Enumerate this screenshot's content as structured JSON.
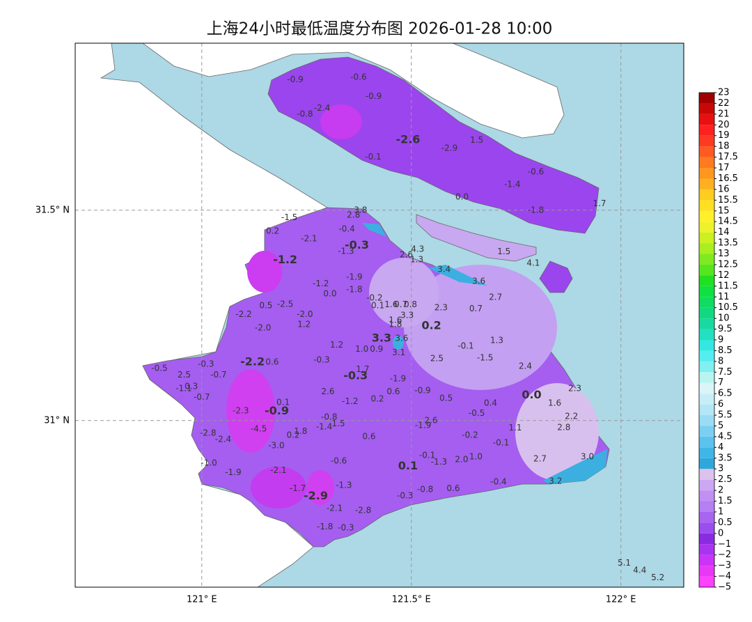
{
  "title": "上海24小时最低温度分布图 2026-01-28 10:00",
  "map": {
    "xlim": [
      120.698,
      122.15
    ],
    "ylim": [
      30.604,
      31.897
    ],
    "xticks": [
      {
        "value": 121,
        "label": "121° E"
      },
      {
        "value": 121.5,
        "label": "121.5° E"
      },
      {
        "value": 122,
        "label": "122° E"
      }
    ],
    "yticks": [
      {
        "value": 31.5,
        "label": "31.5° N"
      },
      {
        "value": 31,
        "label": "31° N"
      }
    ],
    "grid": true,
    "stations": [
      {
        "lon": 121.223,
        "lat": 31.81,
        "value": -0.9
      },
      {
        "lon": 121.374,
        "lat": 31.816,
        "value": -0.6
      },
      {
        "lon": 121.41,
        "lat": 31.77,
        "value": -0.9
      },
      {
        "lon": 121.287,
        "lat": 31.742,
        "value": -2.4
      },
      {
        "lon": 121.246,
        "lat": 31.728,
        "value": -0.8
      },
      {
        "lon": 121.492,
        "lat": 31.667,
        "value": -2.6,
        "bold": true
      },
      {
        "lon": 121.591,
        "lat": 31.647,
        "value": -2.9
      },
      {
        "lon": 121.656,
        "lat": 31.666,
        "value": 1.5
      },
      {
        "lon": 121.409,
        "lat": 31.626,
        "value": -0.1
      },
      {
        "lon": 121.797,
        "lat": 31.591,
        "value": -0.6
      },
      {
        "lon": 121.741,
        "lat": 31.561,
        "value": -1.4
      },
      {
        "lon": 121.621,
        "lat": 31.531,
        "value": 0,
        "label": "0.0"
      },
      {
        "lon": 121.797,
        "lat": 31.5,
        "value": -1.8
      },
      {
        "lon": 121.949,
        "lat": 31.515,
        "value": 1.7
      },
      {
        "lon": 121.379,
        "lat": 31.5,
        "value": 3.8
      },
      {
        "lon": 121.362,
        "lat": 31.488,
        "value": 2.8
      },
      {
        "lon": 121.209,
        "lat": 31.482,
        "value": -1.5
      },
      {
        "lon": 121.169,
        "lat": 31.45,
        "value": 0.2
      },
      {
        "lon": 121.346,
        "lat": 31.455,
        "value": -0.4
      },
      {
        "lon": 121.256,
        "lat": 31.432,
        "value": -2.1
      },
      {
        "lon": 121.37,
        "lat": 31.416,
        "value": -0.3,
        "bold": true
      },
      {
        "lon": 121.344,
        "lat": 31.402,
        "value": -1.3
      },
      {
        "lon": 121.515,
        "lat": 31.407,
        "value": 4.3
      },
      {
        "lon": 121.488,
        "lat": 31.394,
        "value": 2.6
      },
      {
        "lon": 121.513,
        "lat": 31.382,
        "value": 1.3
      },
      {
        "lon": 121.199,
        "lat": 31.381,
        "value": -1.2,
        "bold": true
      },
      {
        "lon": 121.578,
        "lat": 31.359,
        "value": 3.4
      },
      {
        "lon": 121.721,
        "lat": 31.401,
        "value": 1.5
      },
      {
        "lon": 121.791,
        "lat": 31.374,
        "value": 4.1
      },
      {
        "lon": 121.364,
        "lat": 31.341,
        "value": -1.9
      },
      {
        "lon": 121.661,
        "lat": 31.331,
        "value": 3.6
      },
      {
        "lon": 121.284,
        "lat": 31.325,
        "value": -1.2
      },
      {
        "lon": 121.364,
        "lat": 31.311,
        "value": -1.8
      },
      {
        "lon": 121.306,
        "lat": 31.301,
        "value": 0,
        "label": "0.0"
      },
      {
        "lon": 121.412,
        "lat": 31.291,
        "value": -0.2
      },
      {
        "lon": 121.701,
        "lat": 31.293,
        "value": 2.7
      },
      {
        "lon": 121.42,
        "lat": 31.273,
        "value": 0.1
      },
      {
        "lon": 121.452,
        "lat": 31.275,
        "value": 1.6
      },
      {
        "lon": 121.475,
        "lat": 31.275,
        "value": 0.7
      },
      {
        "lon": 121.498,
        "lat": 31.275,
        "value": 0.8
      },
      {
        "lon": 121.153,
        "lat": 31.273,
        "value": 0.5
      },
      {
        "lon": 121.199,
        "lat": 31.276,
        "value": -2.5
      },
      {
        "lon": 121.571,
        "lat": 31.268,
        "value": 2.3
      },
      {
        "lon": 121.654,
        "lat": 31.265,
        "value": 0.7
      },
      {
        "lon": 121.1,
        "lat": 31.252,
        "value": -2.2
      },
      {
        "lon": 121.246,
        "lat": 31.252,
        "value": -2.0,
        "label": "-2.0"
      },
      {
        "lon": 121.49,
        "lat": 31.25,
        "value": 3.3
      },
      {
        "lon": 121.462,
        "lat": 31.238,
        "value": 1.6
      },
      {
        "lon": 121.462,
        "lat": 31.228,
        "value": 1.8
      },
      {
        "lon": 121.244,
        "lat": 31.228,
        "value": 1.2
      },
      {
        "lon": 121.548,
        "lat": 31.225,
        "value": 0.2,
        "bold": true
      },
      {
        "lon": 121.146,
        "lat": 31.22,
        "value": -2.0,
        "label": "-2.0"
      },
      {
        "lon": 121.429,
        "lat": 31.195,
        "value": 3.3,
        "bold": true
      },
      {
        "lon": 121.477,
        "lat": 31.195,
        "value": 3.6
      },
      {
        "lon": 121.704,
        "lat": 31.19,
        "value": 1.3
      },
      {
        "lon": 121.322,
        "lat": 31.179,
        "value": 1.2
      },
      {
        "lon": 121.382,
        "lat": 31.169,
        "value": 1,
        "label": "1.0"
      },
      {
        "lon": 121.417,
        "lat": 31.169,
        "value": 0.9
      },
      {
        "lon": 121.63,
        "lat": 31.177,
        "value": -0.1
      },
      {
        "lon": 121.47,
        "lat": 31.161,
        "value": 3.1
      },
      {
        "lon": 121.676,
        "lat": 31.149,
        "value": -1.5
      },
      {
        "lon": 120.899,
        "lat": 31.124,
        "value": -0.5
      },
      {
        "lon": 121.01,
        "lat": 31.134,
        "value": -0.3
      },
      {
        "lon": 121.121,
        "lat": 31.139,
        "value": -2.2,
        "bold": true
      },
      {
        "lon": 121.168,
        "lat": 31.139,
        "value": 0.6
      },
      {
        "lon": 121.286,
        "lat": 31.144,
        "value": -0.3
      },
      {
        "lon": 121.561,
        "lat": 31.147,
        "value": 2.5
      },
      {
        "lon": 121.772,
        "lat": 31.129,
        "value": 2.4
      },
      {
        "lon": 121.04,
        "lat": 31.108,
        "value": -0.7
      },
      {
        "lon": 120.958,
        "lat": 31.108,
        "value": 2.5
      },
      {
        "lon": 121.384,
        "lat": 31.121,
        "value": 1.7
      },
      {
        "lon": 121.367,
        "lat": 31.106,
        "value": -0.3,
        "bold": true
      },
      {
        "lon": 120.975,
        "lat": 31.081,
        "value": 0.3
      },
      {
        "lon": 120.957,
        "lat": 31.076,
        "value": -1.1
      },
      {
        "lon": 121.468,
        "lat": 31.099,
        "value": -1.9
      },
      {
        "lon": 121.89,
        "lat": 31.076,
        "value": 2.3
      },
      {
        "lon": 121.301,
        "lat": 31.068,
        "value": 2.6
      },
      {
        "lon": 121.457,
        "lat": 31.068,
        "value": 0.6
      },
      {
        "lon": 121.527,
        "lat": 31.071,
        "value": -0.9
      },
      {
        "lon": 121.0,
        "lat": 31.055,
        "value": -0.7
      },
      {
        "lon": 121.787,
        "lat": 31.06,
        "value": 0,
        "label": "0.0",
        "bold": true
      },
      {
        "lon": 121.354,
        "lat": 31.045,
        "value": -1.2
      },
      {
        "lon": 121.419,
        "lat": 31.051,
        "value": 0.2
      },
      {
        "lon": 121.583,
        "lat": 31.053,
        "value": 0.5
      },
      {
        "lon": 121.689,
        "lat": 31.041,
        "value": 0.4
      },
      {
        "lon": 121.194,
        "lat": 31.043,
        "value": 0.1
      },
      {
        "lon": 121.842,
        "lat": 31.041,
        "value": 1.6
      },
      {
        "lon": 121.093,
        "lat": 31.023,
        "value": -2.3
      },
      {
        "lon": 121.179,
        "lat": 31.022,
        "value": -0.9,
        "bold": true
      },
      {
        "lon": 121.656,
        "lat": 31.017,
        "value": -0.5
      },
      {
        "lon": 121.882,
        "lat": 31.01,
        "value": 2.2
      },
      {
        "lon": 121.304,
        "lat": 31.008,
        "value": -0.8
      },
      {
        "lon": 121.326,
        "lat": 30.992,
        "value": 1.5
      },
      {
        "lon": 121.292,
        "lat": 30.985,
        "value": -1.4
      },
      {
        "lon": 121.547,
        "lat": 31.0,
        "value": 2.6
      },
      {
        "lon": 121.528,
        "lat": 30.988,
        "value": -1.9
      },
      {
        "lon": 121.236,
        "lat": 30.974,
        "value": 1.8
      },
      {
        "lon": 121.218,
        "lat": 30.965,
        "value": 0.2
      },
      {
        "lon": 121.136,
        "lat": 30.98,
        "value": -4.5
      },
      {
        "lon": 121.015,
        "lat": 30.97,
        "value": -2.8
      },
      {
        "lon": 121.748,
        "lat": 30.982,
        "value": 1.1
      },
      {
        "lon": 121.864,
        "lat": 30.983,
        "value": 2.8
      },
      {
        "lon": 121.051,
        "lat": 30.955,
        "value": -2.4
      },
      {
        "lon": 121.399,
        "lat": 30.962,
        "value": 0.6
      },
      {
        "lon": 121.64,
        "lat": 30.965,
        "value": -0.2
      },
      {
        "lon": 121.714,
        "lat": 30.947,
        "value": -0.1
      },
      {
        "lon": 121.178,
        "lat": 30.94,
        "value": -3,
        "label": "-3.0"
      },
      {
        "lon": 121.538,
        "lat": 30.917,
        "value": -0.1
      },
      {
        "lon": 121.566,
        "lat": 30.901,
        "value": -1.3
      },
      {
        "lon": 121.62,
        "lat": 30.907,
        "value": 2,
        "label": "2.0"
      },
      {
        "lon": 121.654,
        "lat": 30.914,
        "value": 1,
        "label": "1.0"
      },
      {
        "lon": 121.017,
        "lat": 30.899,
        "value": -1,
        "label": "-1.0"
      },
      {
        "lon": 121.327,
        "lat": 30.904,
        "value": -0.6
      },
      {
        "lon": 121.492,
        "lat": 30.891,
        "value": 0.1,
        "bold": true
      },
      {
        "lon": 121.807,
        "lat": 30.909,
        "value": 2.7
      },
      {
        "lon": 121.92,
        "lat": 30.914,
        "value": 3,
        "label": "3.0"
      },
      {
        "lon": 121.075,
        "lat": 30.876,
        "value": -1.9
      },
      {
        "lon": 121.183,
        "lat": 30.881,
        "value": -2.1
      },
      {
        "lon": 121.229,
        "lat": 30.838,
        "value": -1.7
      },
      {
        "lon": 121.339,
        "lat": 30.846,
        "value": -1.3
      },
      {
        "lon": 121.844,
        "lat": 30.856,
        "value": 3.2
      },
      {
        "lon": 121.708,
        "lat": 30.854,
        "value": -0.4
      },
      {
        "lon": 121.272,
        "lat": 30.82,
        "value": -2.9,
        "bold": true
      },
      {
        "lon": 121.485,
        "lat": 30.821,
        "value": -0.3
      },
      {
        "lon": 121.533,
        "lat": 30.836,
        "value": -0.8
      },
      {
        "lon": 121.6,
        "lat": 30.838,
        "value": 0.6
      },
      {
        "lon": 121.317,
        "lat": 30.791,
        "value": -2.1
      },
      {
        "lon": 121.385,
        "lat": 30.786,
        "value": -2.8
      },
      {
        "lon": 121.294,
        "lat": 30.747,
        "value": -1.8
      },
      {
        "lon": 121.344,
        "lat": 30.745,
        "value": -0.3
      },
      {
        "lon": 122.008,
        "lat": 30.661,
        "value": 5.1
      },
      {
        "lon": 122.045,
        "lat": 30.644,
        "value": 4.4
      },
      {
        "lon": 122.088,
        "lat": 30.626,
        "value": 5.2
      }
    ]
  },
  "colorbar": {
    "ticks": [
      {
        "value": -5,
        "label": "−5"
      },
      {
        "value": -4,
        "label": "−4"
      },
      {
        "value": -3,
        "label": "−3"
      },
      {
        "value": -2,
        "label": "−2"
      },
      {
        "value": -1,
        "label": "−1"
      },
      0,
      0.5,
      1,
      1.5,
      2,
      2.5,
      3,
      3.5,
      4,
      4.5,
      5,
      5.5,
      6,
      6.5,
      7,
      7.5,
      8,
      8.5,
      9,
      9.5,
      10,
      10.5,
      11,
      11.5,
      12,
      12.5,
      13,
      13.5,
      14,
      14.5,
      15,
      15.5,
      16,
      16.5,
      17,
      17.5,
      18,
      19,
      20,
      21,
      22,
      23
    ],
    "colors": [
      "#ff40ff",
      "#e838f5",
      "#cc33f8",
      "#aa33f2",
      "#8a2be2",
      "#9b4df0",
      "#a866f0",
      "#b57ef2",
      "#c190f3",
      "#cca8f3",
      "#dcc2ec",
      "#2ea8dc",
      "#3fb6e6",
      "#5bc3ee",
      "#7bd0f2",
      "#9bdcf5",
      "#b3e6f7",
      "#c7eef8",
      "#daf4f8",
      "#b8f5f0",
      "#80f0f0",
      "#55eef0",
      "#33e8e0",
      "#22e0c0",
      "#1ad9a0",
      "#12d980",
      "#0fdc60",
      "#10e040",
      "#20e020",
      "#55e620",
      "#80ea20",
      "#a8ee20",
      "#ccf020",
      "#eef22a",
      "#fff02a",
      "#ffe020",
      "#ffcc20",
      "#ffb020",
      "#ff9620",
      "#ff7a20",
      "#ff5a20",
      "#ff3a20",
      "#ff2020",
      "#e81010",
      "#c80808",
      "#a00000"
    ]
  }
}
